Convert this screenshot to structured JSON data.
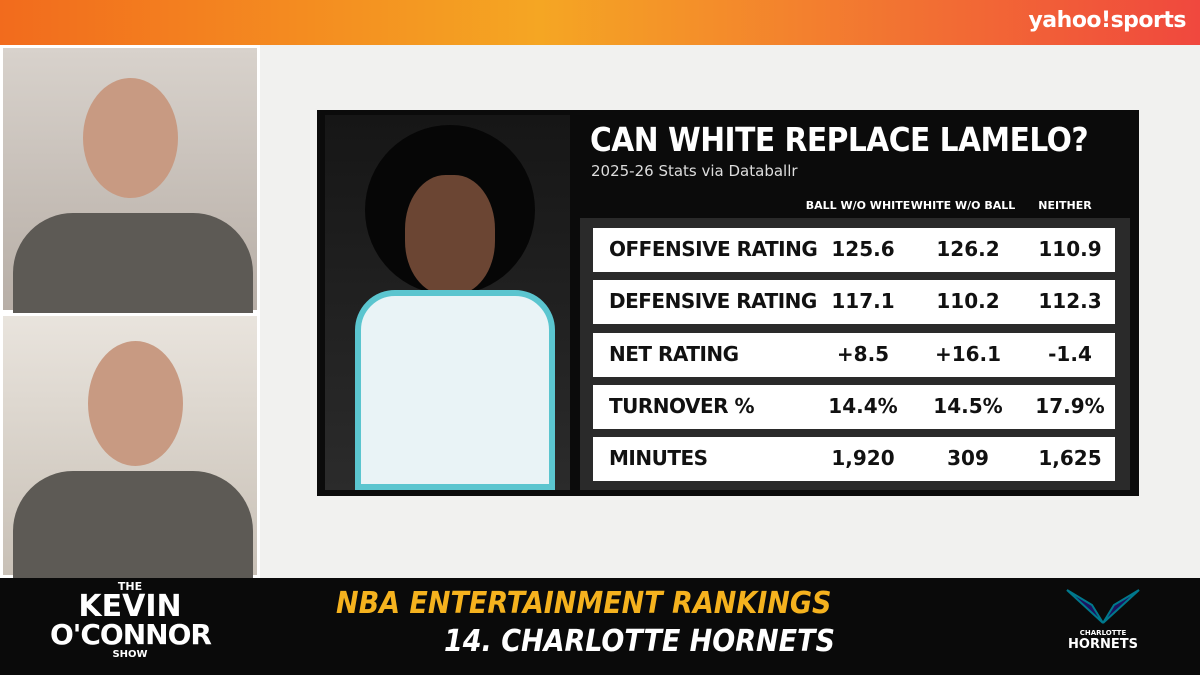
{
  "brand": "yahoo!sports",
  "stats_card": {
    "title": "CAN WHITE REPLACE LAMELO?",
    "subtitle": "2025-26 Stats via Databallr",
    "columns": [
      "BALL W/O WHITE",
      "WHITE W/O BALL",
      "NEITHER"
    ],
    "rows": [
      {
        "label": "OFFENSIVE RATING",
        "values": [
          "125.6",
          "126.2",
          "110.9"
        ]
      },
      {
        "label": "DEFENSIVE RATING",
        "values": [
          "117.1",
          "110.2",
          "112.3"
        ]
      },
      {
        "label": "NET RATING",
        "values": [
          "+8.5",
          "+16.1",
          "-1.4"
        ]
      },
      {
        "label": "TURNOVER %",
        "values": [
          "14.4%",
          "14.5%",
          "17.9%"
        ]
      },
      {
        "label": "MINUTES",
        "values": [
          "1,920",
          "309",
          "1,625"
        ]
      }
    ]
  },
  "show": {
    "top": "THE",
    "line1": "KEVIN",
    "line2": "O'CONNOR",
    "bottom": "SHOW"
  },
  "lower_third": {
    "line1": "NBA ENTERTAINMENT RANKINGS",
    "line2": "14. CHARLOTTE HORNETS"
  },
  "team_logo": {
    "city": "CHARLOTTE",
    "name": "HORNETS"
  }
}
